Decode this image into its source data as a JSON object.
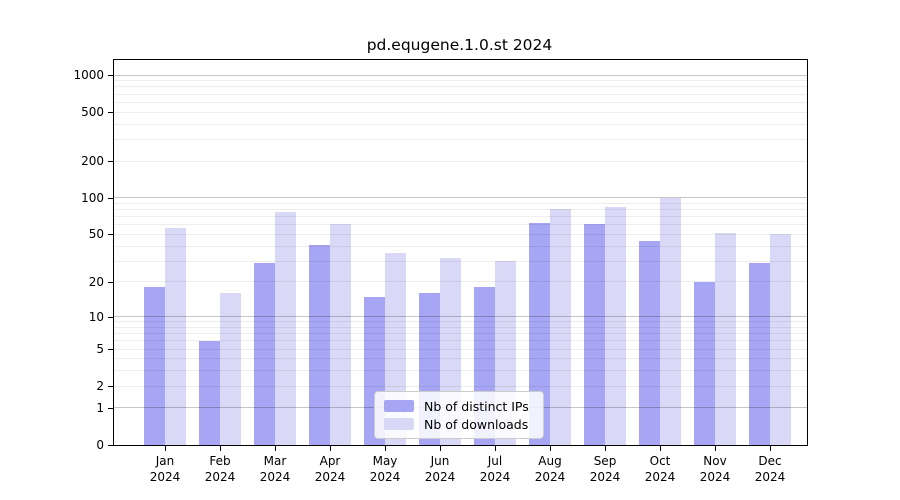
{
  "chart_data": {
    "type": "bar",
    "title": "pd.equgene.1.0.st 2024",
    "year": "2024",
    "categories": [
      "Jan 2024",
      "Feb 2024",
      "Mar 2024",
      "Apr 2024",
      "May 2024",
      "Jun 2024",
      "Jul 2024",
      "Aug 2024",
      "Sep 2024",
      "Oct 2024",
      "Nov 2024",
      "Dec 2024"
    ],
    "month_labels": [
      "Jan",
      "Feb",
      "Mar",
      "Apr",
      "May",
      "Jun",
      "Jul",
      "Aug",
      "Sep",
      "Oct",
      "Nov",
      "Dec"
    ],
    "series": [
      {
        "name": "Nb of distinct IPs",
        "color": "#a6a6f4",
        "values": [
          18,
          6,
          29,
          41,
          15,
          16,
          18,
          62,
          61,
          44,
          20,
          29
        ]
      },
      {
        "name": "Nb of downloads",
        "color": "#d9d9f7",
        "values": [
          57,
          16,
          76,
          61,
          35,
          32,
          30,
          81,
          84,
          100,
          51,
          50
        ]
      }
    ],
    "xlabel": "",
    "ylabel": "",
    "y_ticks": [
      0,
      1,
      2,
      5,
      10,
      20,
      50,
      100,
      200,
      500,
      1000
    ],
    "y_major_gridlines": [
      1,
      10,
      100,
      1000
    ],
    "y_scale": "log10(value+1)",
    "ylim": [
      0,
      1324
    ],
    "grid": true,
    "legend_position": "inside lower-center",
    "colors": {
      "background": "#ffffff",
      "spine": "#000000",
      "major_grid": "#c7c7c7",
      "minor_grid": "#ededed",
      "text": "#000000"
    }
  }
}
